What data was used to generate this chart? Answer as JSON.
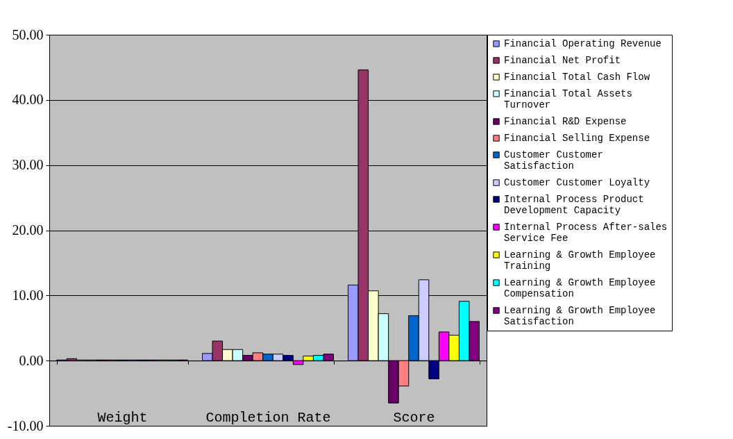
{
  "chart_data": {
    "type": "bar",
    "categories": [
      "Weight",
      "Completion Rate",
      "Score"
    ],
    "ylim": [
      -10,
      50
    ],
    "yticks": [
      {
        "value": -10,
        "label": "-10.00"
      },
      {
        "value": 0,
        "label": "0.00"
      },
      {
        "value": 10,
        "label": "10.00"
      },
      {
        "value": 20,
        "label": "20.00"
      },
      {
        "value": 30,
        "label": "30.00"
      },
      {
        "value": 40,
        "label": "40.00"
      },
      {
        "value": 50,
        "label": "50.00"
      }
    ],
    "grid": "y",
    "legend": "right",
    "series": [
      {
        "name": "Financial Operating Revenue",
        "color": "#9999ff",
        "values": [
          0.1,
          1.1,
          11.6
        ]
      },
      {
        "name": "Financial Net Profit",
        "color": "#993366",
        "values": [
          0.3,
          3,
          44.6
        ]
      },
      {
        "name": "Financial Total Cash Flow",
        "color": "#ffffcc",
        "values": [
          0.1,
          1.7,
          10.7
        ]
      },
      {
        "name": "Financial Total Assets Turnover",
        "color": "#ccffff",
        "values": [
          0.1,
          1.7,
          7.2
        ]
      },
      {
        "name": "Financial R&D Expense",
        "color": "#660066",
        "values": [
          0.1,
          0.8,
          -6.5
        ]
      },
      {
        "name": "Financial Selling Expense",
        "color": "#ff8080",
        "values": [
          0.1,
          1.2,
          -3.9
        ]
      },
      {
        "name": "Customer Customer Satisfaction",
        "color": "#0066cc",
        "values": [
          0.1,
          1,
          6.9
        ]
      },
      {
        "name": "Customer Customer Loyalty",
        "color": "#ccccff",
        "values": [
          0.1,
          1,
          12.4
        ]
      },
      {
        "name": "Internal Process Product Development Capacity",
        "color": "#000080",
        "values": [
          0.1,
          0.8,
          -2.8
        ]
      },
      {
        "name": "Internal Process After-sales Service Fee",
        "color": "#ff00ff",
        "values": [
          0.1,
          -0.6,
          4.4
        ]
      },
      {
        "name": "Learning & Growth Employee Training",
        "color": "#ffff00",
        "values": [
          0.1,
          0.7,
          3.9
        ]
      },
      {
        "name": "Learning & Growth Employee Compensation",
        "color": "#00ffff",
        "values": [
          0.1,
          0.8,
          9.1
        ]
      },
      {
        "name": "Learning & Growth Employee Satisfaction",
        "color": "#800080",
        "values": [
          0.1,
          1,
          6
        ]
      }
    ]
  }
}
